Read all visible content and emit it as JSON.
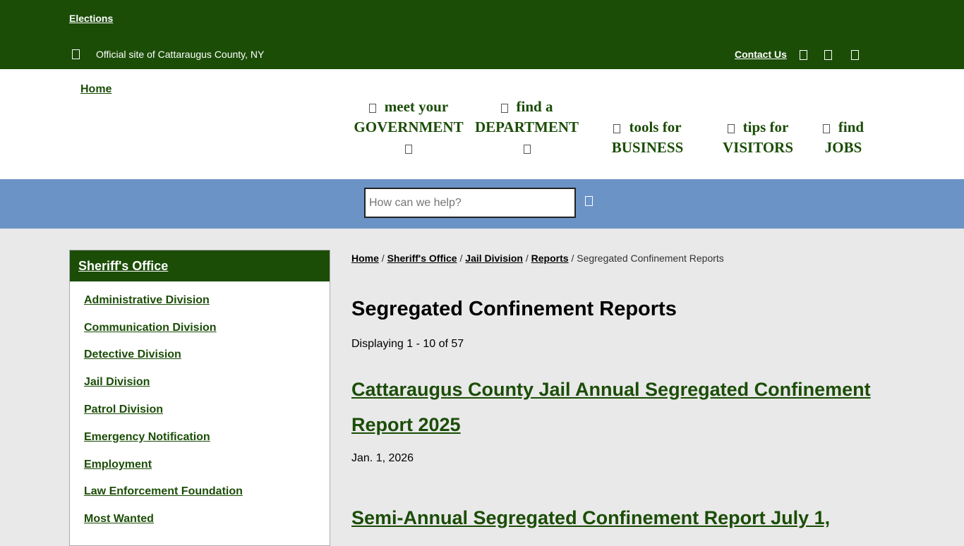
{
  "topbar": {
    "elections": "Elections",
    "official": "Official site of Cattaraugus County, NY",
    "contact": "Contact Us"
  },
  "logo_alt": "Home",
  "nav": [
    {
      "line1": "meet your",
      "line2": "GOVERNMENT"
    },
    {
      "line1": "find a",
      "line2": "DEPARTMENT"
    },
    {
      "line1": "tools for",
      "line2": "BUSINESS"
    },
    {
      "line1": "tips for",
      "line2": "VISITORS"
    },
    {
      "line1": "find",
      "line2": "JOBS"
    }
  ],
  "search": {
    "placeholder": "How can we help?"
  },
  "sidebar": {
    "title": "Sheriff's Office",
    "items": [
      "Administrative Division",
      "Communication Division",
      "Detective Division",
      "Jail Division",
      "Patrol Division",
      "Emergency Notification",
      "Employment",
      "Law Enforcement Foundation",
      "Most Wanted"
    ]
  },
  "breadcrumb": {
    "items": [
      "Home",
      "Sheriff's Office",
      "Jail Division",
      "Reports"
    ],
    "current": "Segregated Confinement Reports"
  },
  "main": {
    "title": "Segregated Confinement Reports",
    "count": "Displaying 1 - 10 of 57",
    "reports": [
      {
        "title": "Cattaraugus County Jail Annual Segregated Confinement Report 2025",
        "date": "Jan. 1, 2026"
      },
      {
        "title": "Semi-Annual Segregated Confinement Report July 1,"
      }
    ]
  },
  "colors": {
    "green": "#1b4d07",
    "blue": "#6c93c6",
    "bg": "#e9e9e9"
  }
}
